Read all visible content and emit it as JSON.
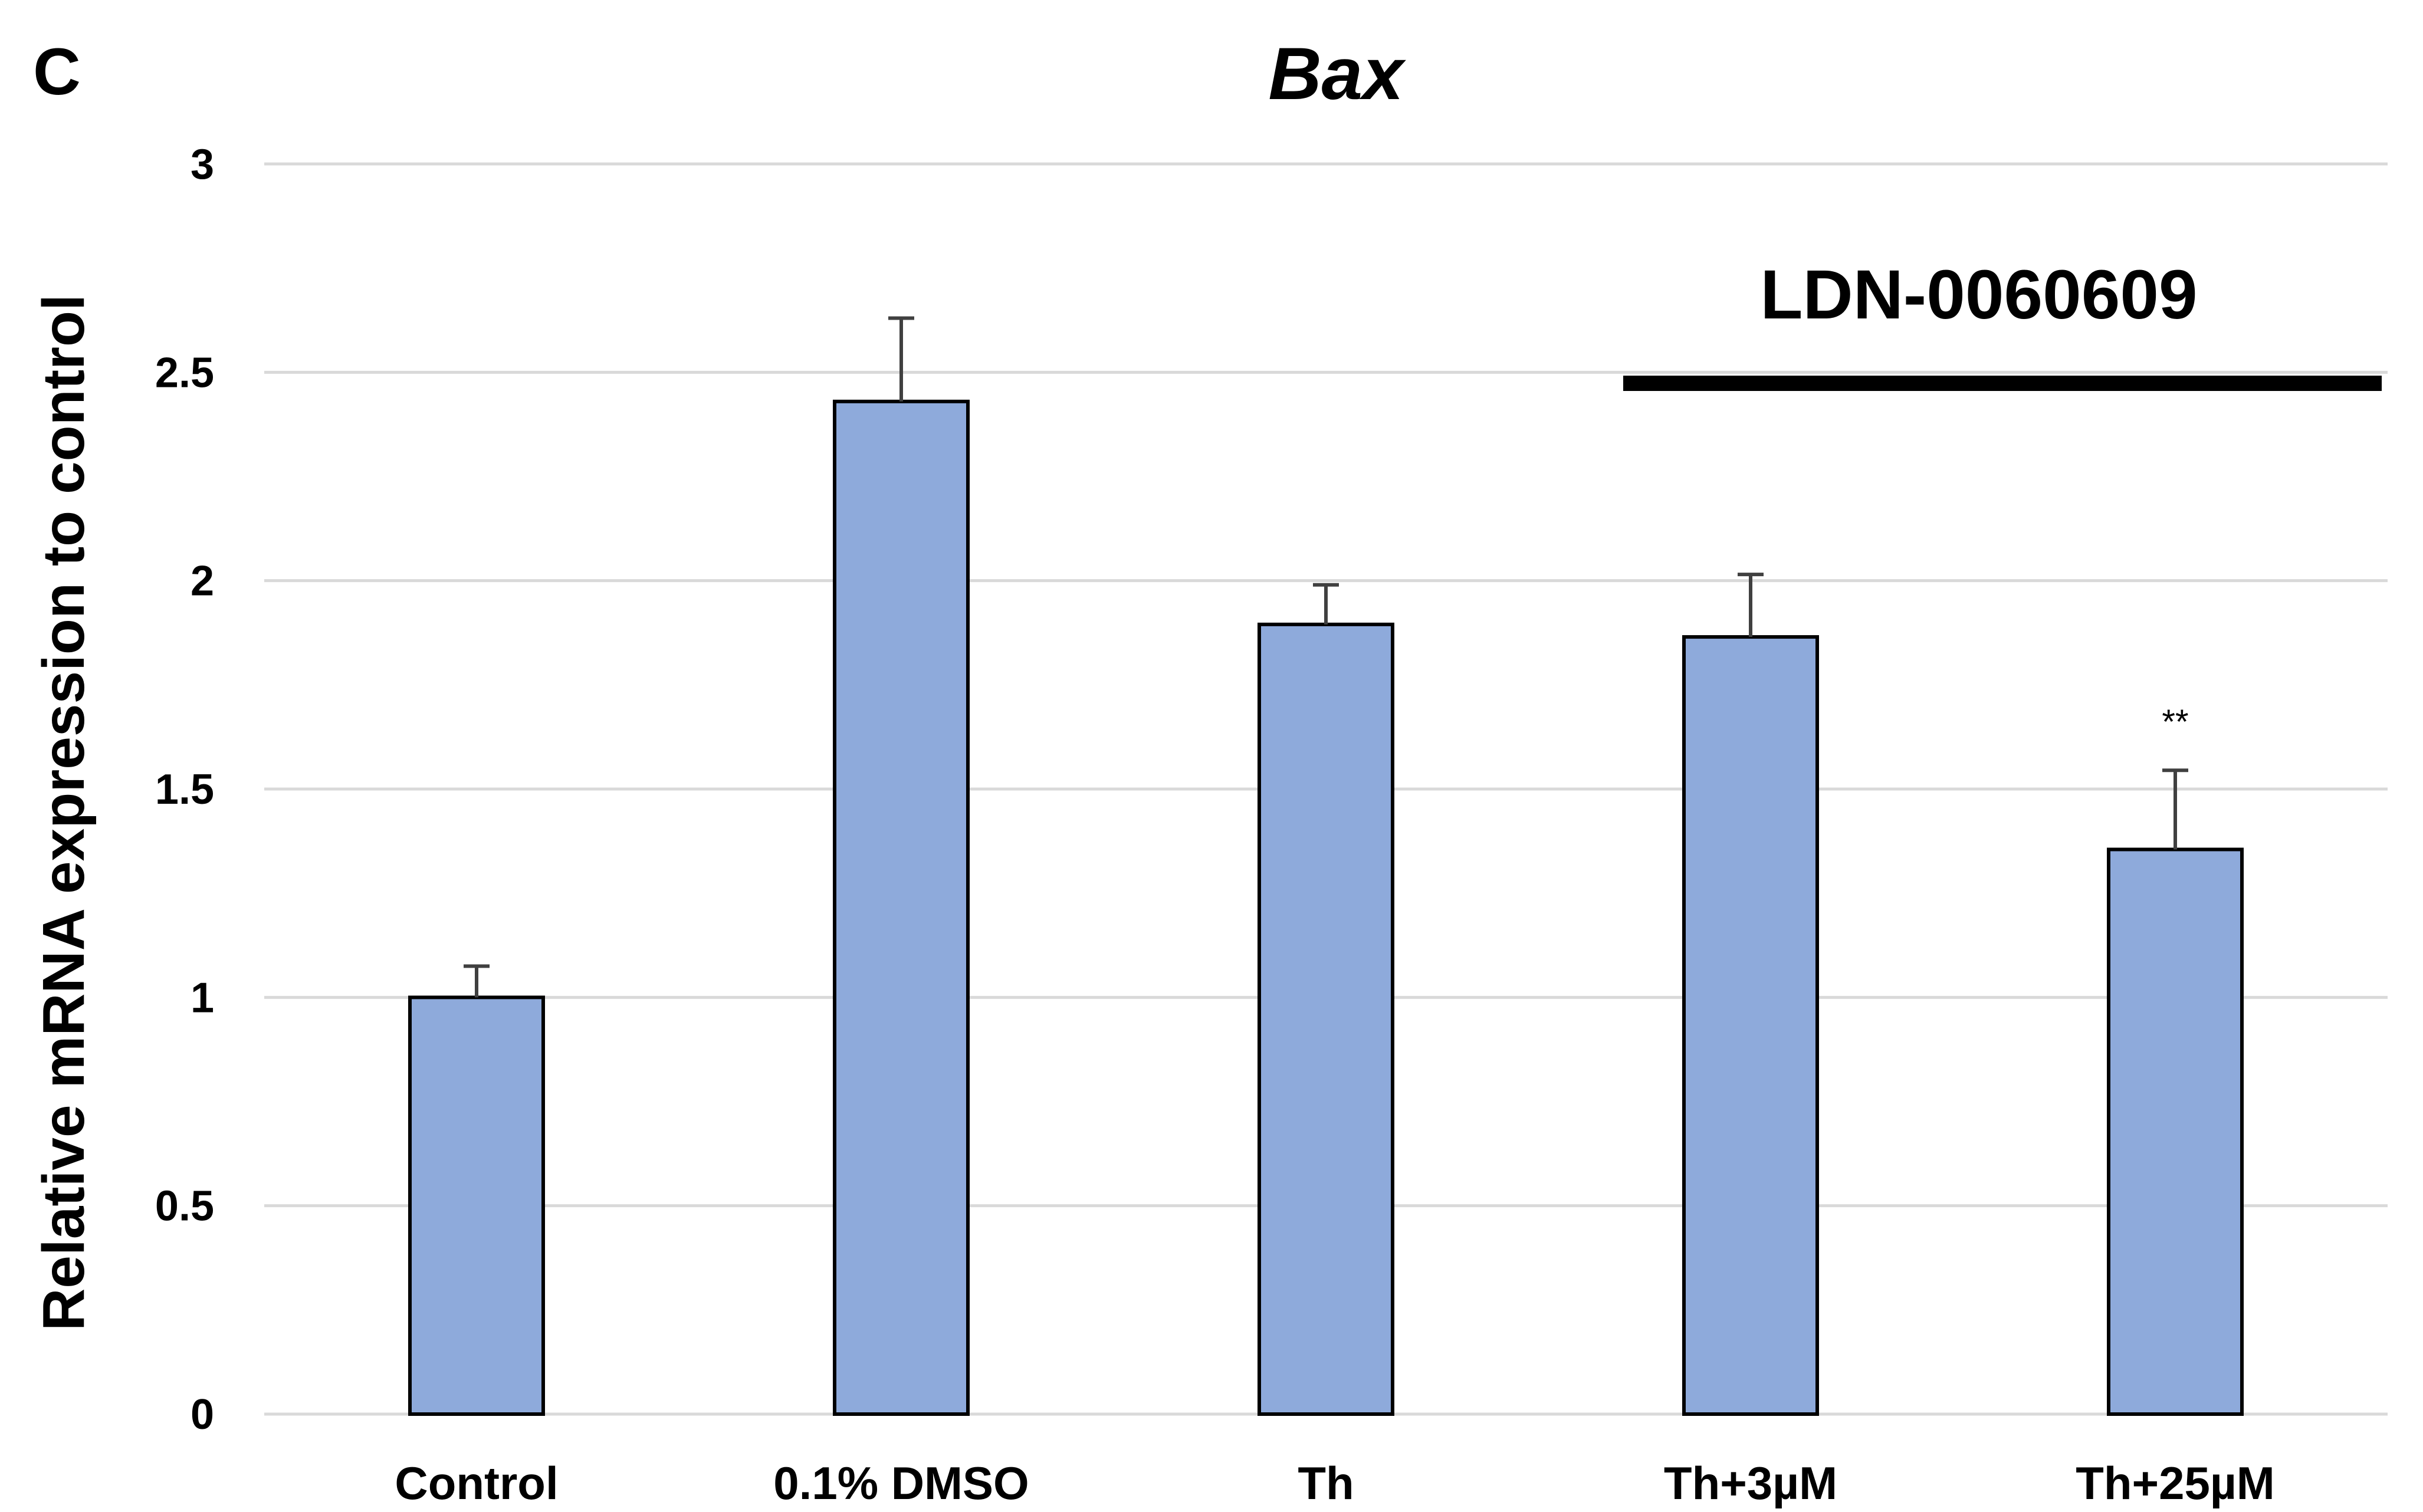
{
  "panel_label": "C",
  "chart_data": {
    "type": "bar",
    "title": "Bax",
    "xlabel": "",
    "ylabel": "Relative mRNA expression to control",
    "ylim": [
      0,
      3
    ],
    "yticks": [
      0,
      0.5,
      1,
      1.5,
      2,
      2.5,
      3
    ],
    "ytick_labels": [
      "0",
      "0.5",
      "1",
      "1.5",
      "2",
      "2.5",
      "3"
    ],
    "grid": true,
    "categories": [
      "Control",
      "0.1% DMSO",
      "Th",
      "Th+3µM",
      "Th+25µM"
    ],
    "values": [
      1.0,
      2.43,
      1.895,
      1.865,
      1.355
    ],
    "errors": [
      0.075,
      0.2,
      0.095,
      0.15,
      0.19
    ],
    "annotations": [
      "",
      "",
      "",
      "",
      "**"
    ],
    "bracket": {
      "label": "LDN-0060609",
      "from_category": 3,
      "to_category": 4
    },
    "colors": {
      "bar": "#8EAADB",
      "bar_edge": "#000000",
      "error": "#404040",
      "grid": "#D9D9D9",
      "bracket": "#000000"
    }
  }
}
